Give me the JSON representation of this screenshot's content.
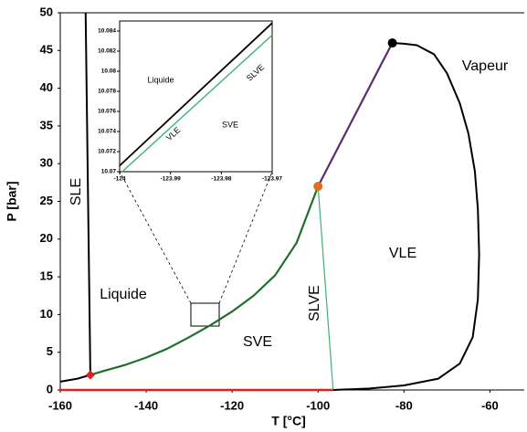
{
  "chart_data": [
    {
      "type": "line",
      "xlabel": "T [°C]",
      "ylabel": "P [bar]",
      "xlim": [
        -160,
        -52
      ],
      "ylim": [
        0,
        50
      ],
      "xticks": [
        -160,
        -140,
        -120,
        -100,
        -80,
        -60
      ],
      "yticks": [
        0,
        5,
        10,
        15,
        20,
        25,
        30,
        35,
        40,
        45,
        50
      ],
      "series": [
        {
          "color": "#000000",
          "width": 2,
          "x": [
            -160,
            -156,
            -153
          ],
          "values": [
            1.1,
            1.5,
            2
          ]
        },
        {
          "color": "#000000",
          "width": 2,
          "x": [
            -153,
            -154.1
          ],
          "values": [
            2,
            50
          ]
        },
        {
          "color": "#1f6f2a",
          "width": 2.2,
          "x": [
            -153,
            -150,
            -145,
            -140,
            -135,
            -130,
            -125,
            -120,
            -115,
            -110,
            -105,
            -100
          ],
          "values": [
            2,
            2.5,
            3.3,
            4.3,
            5.5,
            7,
            8.6,
            10.4,
            12.5,
            15.2,
            19.5,
            27
          ]
        },
        {
          "color": "#5b2c6f",
          "width": 2.2,
          "x": [
            -100,
            -95,
            -90,
            -85,
            -82.7
          ],
          "values": [
            27,
            32.5,
            38,
            43.5,
            46
          ]
        },
        {
          "color": "#000000",
          "width": 2,
          "x": [
            -82.7,
            -80,
            -77,
            -73,
            -70,
            -67,
            -65,
            -63.5,
            -62.8,
            -62.5,
            -62.8,
            -64,
            -67,
            -72,
            -80,
            -88,
            -96.5
          ],
          "values": [
            46,
            45.9,
            45.7,
            44.5,
            42,
            38,
            34,
            29,
            24,
            18,
            12,
            7,
            3.5,
            1.5,
            0.6,
            0.2,
            0
          ]
        },
        {
          "color": "#3cb371",
          "width": 1.2,
          "x": [
            -100,
            -96.5
          ],
          "values": [
            27,
            0
          ]
        },
        {
          "color": "#e02020",
          "width": 2.5,
          "x": [
            -160,
            -96.5
          ],
          "values": [
            0,
            0
          ]
        },
        {
          "color": "#e02020",
          "marker": "diamond",
          "x": [
            -153
          ],
          "values": [
            2
          ]
        },
        {
          "color": "#e07020",
          "marker": "circle",
          "x": [
            -100
          ],
          "values": [
            27
          ]
        },
        {
          "color": "#000000",
          "marker": "circle",
          "x": [
            -82.7
          ],
          "values": [
            46
          ]
        }
      ],
      "annotations": [
        "SLE",
        "Liquide",
        "SVE",
        "SLVE",
        "VLE",
        "Vapeur"
      ]
    },
    {
      "type": "line",
      "xlim": [
        -124,
        -123.97
      ],
      "ylim": [
        10.07,
        10.085
      ],
      "xticks": [
        -124,
        -123.99,
        -123.98,
        -123.97
      ],
      "yticks": [
        10.07,
        10.072,
        10.074,
        10.076,
        10.078,
        10.08,
        10.082,
        10.084
      ],
      "series": [
        {
          "color": "#000000",
          "width": 1.8,
          "x": [
            -124,
            -123.97
          ],
          "values": [
            10.0706,
            10.0848
          ]
        },
        {
          "color": "#3cb371",
          "width": 1.4,
          "x": [
            -123.9995,
            -123.97
          ],
          "values": [
            10.07,
            10.0836
          ]
        }
      ],
      "annotations": [
        "Liquide",
        "SVE",
        "VLE",
        "SLVE"
      ]
    }
  ]
}
